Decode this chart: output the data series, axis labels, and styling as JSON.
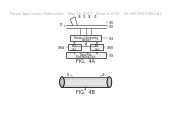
{
  "background_color": "#ffffff",
  "header_text": "Patent Application Publication    May 28, 2013   Sheet 4 of 10    US 2013/0133454 A1",
  "header_fontsize": 2.5,
  "fig4a_label": "FIG.  4A",
  "fig4b_label": "FIG.  4B",
  "line_color": "#555555",
  "dark": "#222222",
  "box_face": "#f0f0f0"
}
